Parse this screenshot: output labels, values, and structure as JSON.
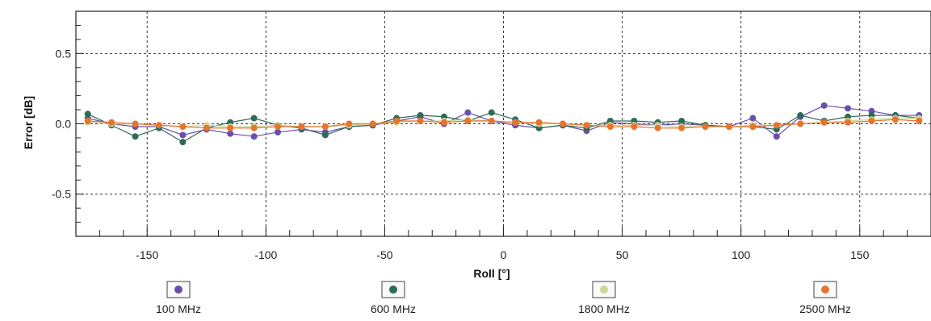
{
  "chart_data": {
    "type": "line",
    "title": "",
    "xlabel": "Roll [°]",
    "ylabel": "Error [dB]",
    "xlim": [
      -180,
      180
    ],
    "ylim": [
      -0.8,
      0.8
    ],
    "x_ticks": [
      -150,
      -100,
      -50,
      0,
      50,
      100,
      150
    ],
    "y_ticks": [
      0.5,
      0.0,
      -0.5
    ],
    "x_tick_labels": [
      "-150",
      "-100",
      "-50",
      "0",
      "50",
      "100",
      "150"
    ],
    "y_tick_labels": [
      "0.5",
      "0.0",
      "-0.5"
    ],
    "grid": true,
    "legend": "bottom",
    "x": [
      -175,
      -165,
      -155,
      -145,
      -135,
      -125,
      -115,
      -105,
      -95,
      -85,
      -75,
      -65,
      -55,
      -45,
      -35,
      -25,
      -15,
      -5,
      5,
      15,
      25,
      35,
      45,
      55,
      65,
      75,
      85,
      95,
      105,
      115,
      125,
      135,
      145,
      155,
      165,
      175
    ],
    "series": [
      {
        "name": "100 MHz",
        "color": "#6a4fa8",
        "values": [
          0.04,
          0.0,
          -0.02,
          -0.02,
          -0.08,
          -0.04,
          -0.07,
          -0.09,
          -0.06,
          -0.04,
          -0.06,
          -0.02,
          -0.01,
          0.02,
          0.05,
          0.0,
          0.08,
          0.02,
          -0.01,
          -0.03,
          -0.01,
          -0.05,
          0.01,
          0.0,
          -0.01,
          0.0,
          -0.01,
          -0.02,
          0.04,
          -0.09,
          0.05,
          0.13,
          0.11,
          0.09,
          0.06,
          0.06
        ]
      },
      {
        "name": "600 MHz",
        "color": "#2e6b58",
        "values": [
          0.07,
          -0.01,
          -0.09,
          -0.03,
          -0.13,
          -0.03,
          0.01,
          0.04,
          -0.01,
          -0.03,
          -0.08,
          -0.02,
          -0.01,
          0.04,
          0.06,
          0.05,
          0.02,
          0.08,
          0.03,
          -0.03,
          -0.01,
          -0.03,
          0.02,
          0.02,
          0.01,
          0.02,
          -0.01,
          -0.02,
          -0.02,
          -0.04,
          0.06,
          0.02,
          0.05,
          0.06,
          0.06,
          0.04
        ]
      },
      {
        "name": "1800 MHz",
        "color": "#cfd694",
        "values": [
          0.01,
          0.0,
          0.0,
          -0.01,
          -0.02,
          -0.01,
          -0.02,
          -0.02,
          -0.01,
          -0.02,
          -0.02,
          -0.01,
          0.0,
          0.01,
          0.02,
          0.02,
          0.03,
          0.02,
          0.01,
          0.0,
          0.0,
          -0.01,
          -0.01,
          -0.01,
          -0.01,
          -0.02,
          -0.02,
          -0.02,
          -0.01,
          -0.01,
          0.0,
          0.01,
          0.02,
          0.03,
          0.04,
          0.04
        ]
      },
      {
        "name": "2500 MHz",
        "color": "#e8742c",
        "values": [
          0.02,
          0.01,
          0.0,
          -0.01,
          -0.02,
          -0.03,
          -0.03,
          -0.03,
          -0.02,
          -0.02,
          -0.02,
          0.0,
          0.0,
          0.02,
          0.02,
          0.01,
          0.02,
          0.02,
          0.01,
          0.01,
          0.0,
          -0.01,
          -0.02,
          -0.02,
          -0.03,
          -0.03,
          -0.02,
          -0.02,
          -0.02,
          -0.01,
          0.0,
          0.01,
          0.01,
          0.02,
          0.03,
          0.02
        ]
      }
    ]
  }
}
